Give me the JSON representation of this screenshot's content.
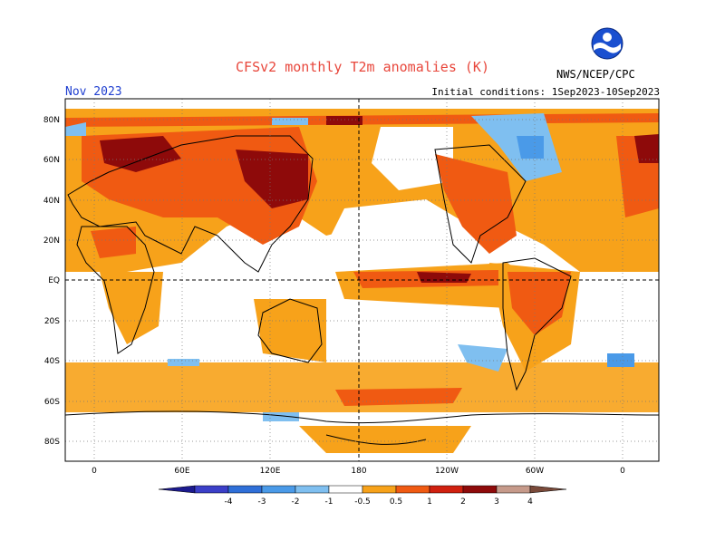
{
  "header": {
    "title": "CFSv2 monthly T2m anomalies (K)",
    "month": "Nov 2023",
    "initial_conditions": "Initial conditions: 1Sep2023-10Sep2023",
    "agency": "NWS/NCEP/CPC"
  },
  "map": {
    "lat_labels": [
      "80N",
      "60N",
      "40N",
      "20N",
      "EQ",
      "20S",
      "40S",
      "60S",
      "80S"
    ],
    "lon_labels": [
      "0",
      "60E",
      "120E",
      "180",
      "120W",
      "60W",
      "0"
    ]
  },
  "legend": {
    "labels": [
      "-4",
      "-3",
      "-2",
      "-1",
      "-0.5",
      "0.5",
      "1",
      "2",
      "3",
      "4"
    ],
    "colors": [
      "#1c1a8f",
      "#3b3fc8",
      "#2f6fd8",
      "#4a9ae8",
      "#7fbff0",
      "#ffffff",
      "#f7a21a",
      "#f05a12",
      "#d0200f",
      "#8e0a0a",
      "#c69a8a",
      "#7a4a3a"
    ]
  }
}
